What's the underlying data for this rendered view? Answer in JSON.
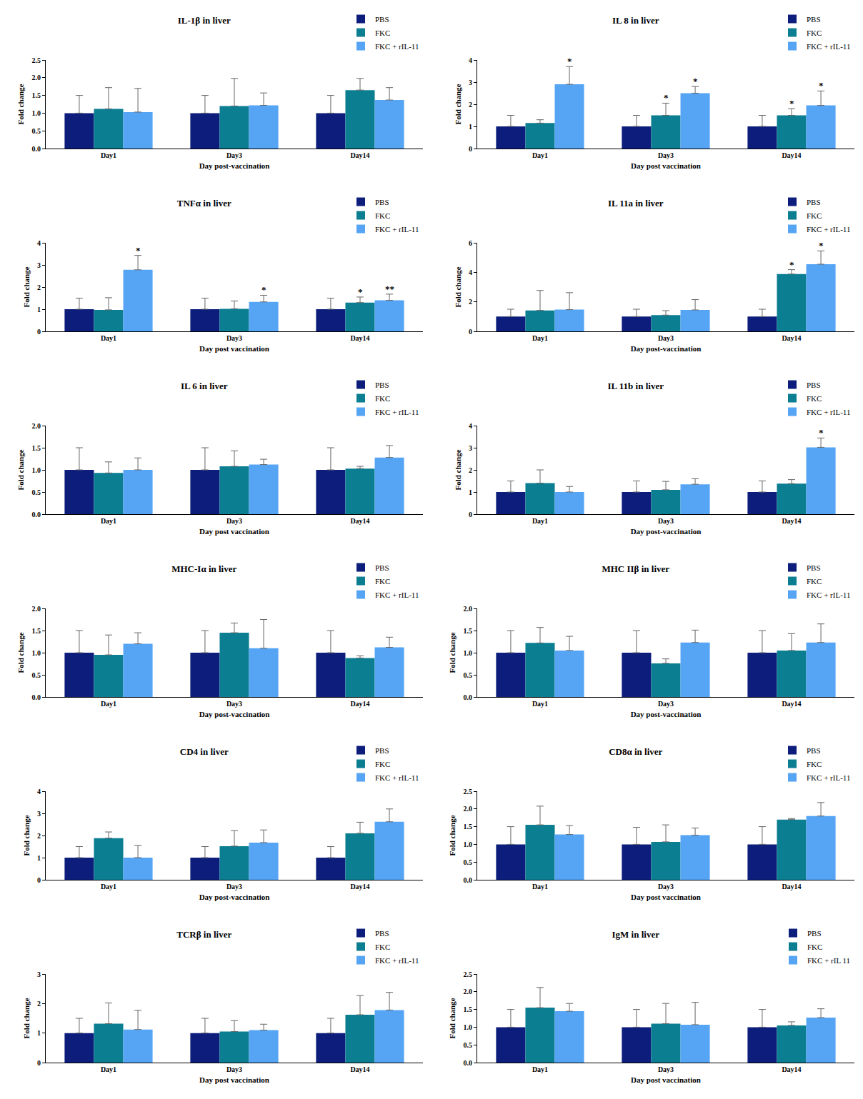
{
  "chart_data": [
    {
      "type": "bar",
      "title": "IL-1β in liver",
      "x_title": "Day post-vaccination",
      "y_title": "Fold change",
      "categories": [
        "Day1",
        "Day3",
        "Day14"
      ],
      "series": [
        {
          "name": "PBS",
          "color": "#0c1d7c",
          "values": [
            1.0,
            1.0,
            1.0
          ],
          "errors": [
            0.5,
            0.5,
            0.5
          ],
          "significance": [
            null,
            null,
            null
          ]
        },
        {
          "name": "FKC",
          "color": "#0b7e92",
          "values": [
            1.12,
            1.2,
            1.65
          ],
          "errors": [
            0.6,
            0.78,
            0.33
          ],
          "significance": [
            null,
            null,
            null
          ]
        },
        {
          "name": "FKC + rIL-11",
          "color": "#56a5f5",
          "values": [
            1.03,
            1.22,
            1.37
          ],
          "errors": [
            0.67,
            0.35,
            0.35
          ],
          "significance": [
            null,
            null,
            null
          ]
        }
      ],
      "ylim": [
        0,
        2.5
      ],
      "yticks": [
        {
          "value": 0,
          "label": "0.0"
        },
        0.5,
        {
          "value": 1,
          "label": "1.0"
        },
        1.5,
        {
          "value": 2,
          "label": "2.0"
        },
        2.5
      ],
      "legend": "top right",
      "grid": false
    },
    {
      "type": "bar",
      "title": "IL 8 in liver",
      "x_title": "Day post vaccination",
      "y_title": "Fold change",
      "categories": [
        "Day1",
        "Day3",
        "Day14"
      ],
      "series": [
        {
          "name": "PBS",
          "color": "#0c1d7c",
          "values": [
            1.0,
            1.0,
            1.0
          ],
          "errors": [
            0.5,
            0.5,
            0.5
          ],
          "significance": [
            null,
            null,
            null
          ]
        },
        {
          "name": "FKC",
          "color": "#0b7e92",
          "values": [
            1.15,
            1.5,
            1.5
          ],
          "errors": [
            0.15,
            0.55,
            0.3
          ],
          "significance": [
            null,
            "*",
            "*"
          ]
        },
        {
          "name": "FKC + rIL-11",
          "color": "#56a5f5",
          "values": [
            2.9,
            2.5,
            1.95
          ],
          "errors": [
            0.8,
            0.3,
            0.65
          ],
          "significance": [
            "*",
            "*",
            "*"
          ]
        }
      ],
      "ylim": [
        0,
        4
      ],
      "yticks": [
        0,
        1,
        2,
        3,
        4
      ],
      "legend": "top right",
      "grid": false
    },
    {
      "type": "bar",
      "title": "TNFα in liver",
      "x_title": "Day post vaccination",
      "y_title": "Fold change",
      "categories": [
        "Day1",
        "Day3",
        "Day14"
      ],
      "series": [
        {
          "name": "PBS",
          "color": "#0c1d7c",
          "values": [
            1.0,
            1.0,
            1.0
          ],
          "errors": [
            0.5,
            0.5,
            0.5
          ],
          "significance": [
            null,
            null,
            null
          ]
        },
        {
          "name": "FKC",
          "color": "#0b7e92",
          "values": [
            0.97,
            1.02,
            1.3
          ],
          "errors": [
            0.55,
            0.35,
            0.25
          ],
          "significance": [
            null,
            null,
            "*"
          ]
        },
        {
          "name": "FKC + rIL-11",
          "color": "#56a5f5",
          "values": [
            2.78,
            1.33,
            1.4
          ],
          "errors": [
            0.65,
            0.3,
            0.28
          ],
          "significance": [
            "*",
            "*",
            "**"
          ]
        }
      ],
      "ylim": [
        0,
        4
      ],
      "yticks": [
        0,
        1,
        2,
        3,
        4
      ],
      "legend": "top right",
      "grid": false
    },
    {
      "type": "bar",
      "title": "IL 11a in liver",
      "x_title": "Day post-vaccination",
      "y_title": "Fold change",
      "categories": [
        "Day1",
        "Day3",
        "Day14"
      ],
      "series": [
        {
          "name": "PBS",
          "color": "#0c1d7c",
          "values": [
            1.0,
            1.0,
            1.0
          ],
          "errors": [
            0.5,
            0.5,
            0.5
          ],
          "significance": [
            null,
            null,
            null
          ]
        },
        {
          "name": "FKC",
          "color": "#0b7e92",
          "values": [
            1.42,
            1.1,
            3.88
          ],
          "errors": [
            1.35,
            0.3,
            0.3
          ],
          "significance": [
            null,
            null,
            "*"
          ]
        },
        {
          "name": "FKC + rIL-11",
          "color": "#56a5f5",
          "values": [
            1.47,
            1.45,
            4.55
          ],
          "errors": [
            1.15,
            0.7,
            0.9
          ],
          "significance": [
            null,
            null,
            "*"
          ]
        }
      ],
      "ylim": [
        0,
        6
      ],
      "yticks": [
        0,
        2,
        4,
        6
      ],
      "legend": "top right",
      "grid": false
    },
    {
      "type": "bar",
      "title": "IL 6 in liver",
      "x_title": "Day post vaccination",
      "y_title": "Fold change",
      "categories": [
        "Day1",
        "Day3",
        "Day14"
      ],
      "series": [
        {
          "name": "PBS",
          "color": "#0c1d7c",
          "values": [
            1.0,
            1.0,
            1.0
          ],
          "errors": [
            0.5,
            0.5,
            0.5
          ],
          "significance": [
            null,
            null,
            null
          ]
        },
        {
          "name": "FKC",
          "color": "#0b7e92",
          "values": [
            0.93,
            1.08,
            1.03
          ],
          "errors": [
            0.25,
            0.35,
            0.05
          ],
          "significance": [
            null,
            null,
            null
          ]
        },
        {
          "name": "FKC + rIL-11",
          "color": "#56a5f5",
          "values": [
            1.0,
            1.12,
            1.28
          ],
          "errors": [
            0.27,
            0.12,
            0.27
          ],
          "significance": [
            null,
            null,
            null
          ]
        }
      ],
      "ylim": [
        0,
        2
      ],
      "yticks": [
        {
          "value": 0,
          "label": "0.0"
        },
        0.5,
        {
          "value": 1,
          "label": "1.0"
        },
        1.5,
        {
          "value": 2,
          "label": "2.0"
        }
      ],
      "legend": "top right",
      "grid": false
    },
    {
      "type": "bar",
      "title": "IL 11b in liver",
      "x_title": "Day post-vaccination",
      "y_title": "Fold change",
      "categories": [
        "Day1",
        "Day3",
        "Day14"
      ],
      "series": [
        {
          "name": "PBS",
          "color": "#0c1d7c",
          "values": [
            1.0,
            1.0,
            1.0
          ],
          "errors": [
            0.5,
            0.5,
            0.5
          ],
          "significance": [
            null,
            null,
            null
          ]
        },
        {
          "name": "FKC",
          "color": "#0b7e92",
          "values": [
            1.4,
            1.1,
            1.38
          ],
          "errors": [
            0.6,
            0.38,
            0.18
          ],
          "significance": [
            null,
            null,
            null
          ]
        },
        {
          "name": "FKC + rIL-11",
          "color": "#56a5f5",
          "values": [
            1.0,
            1.35,
            3.02
          ],
          "errors": [
            0.25,
            0.25,
            0.42
          ],
          "significance": [
            null,
            null,
            "*"
          ]
        }
      ],
      "ylim": [
        0,
        4
      ],
      "yticks": [
        0,
        1,
        2,
        3,
        4
      ],
      "legend": "top right",
      "grid": false
    },
    {
      "type": "bar",
      "title": "MHC-Iα in liver",
      "x_title": "Day post-vaccination",
      "y_title": "Fold change",
      "categories": [
        "Day1",
        "Day3",
        "Day14"
      ],
      "series": [
        {
          "name": "PBS",
          "color": "#0c1d7c",
          "values": [
            1.0,
            1.0,
            1.0
          ],
          "errors": [
            0.5,
            0.5,
            0.5
          ],
          "significance": [
            null,
            null,
            null
          ]
        },
        {
          "name": "FKC",
          "color": "#0b7e92",
          "values": [
            0.95,
            1.45,
            0.88
          ],
          "errors": [
            0.45,
            0.22,
            0.05
          ],
          "significance": [
            null,
            null,
            null
          ]
        },
        {
          "name": "FKC + rIL-11",
          "color": "#56a5f5",
          "values": [
            1.2,
            1.1,
            1.12
          ],
          "errors": [
            0.25,
            0.65,
            0.23
          ],
          "significance": [
            null,
            null,
            null
          ]
        }
      ],
      "ylim": [
        0,
        2
      ],
      "yticks": [
        {
          "value": 0,
          "label": "0.0"
        },
        0.5,
        {
          "value": 1,
          "label": "1.0"
        },
        1.5,
        {
          "value": 2,
          "label": "2.0"
        }
      ],
      "legend": "top right",
      "grid": false
    },
    {
      "type": "bar",
      "title": "MHC IIβ in liver",
      "x_title": "Day post-vaccination",
      "y_title": "Fold change",
      "categories": [
        "Day1",
        "Day3",
        "Day14"
      ],
      "series": [
        {
          "name": "PBS",
          "color": "#0c1d7c",
          "values": [
            1.0,
            1.0,
            1.0
          ],
          "errors": [
            0.5,
            0.5,
            0.5
          ],
          "significance": [
            null,
            null,
            null
          ]
        },
        {
          "name": "FKC",
          "color": "#0b7e92",
          "values": [
            1.22,
            0.76,
            1.05
          ],
          "errors": [
            0.35,
            0.1,
            0.38
          ],
          "significance": [
            null,
            null,
            null
          ]
        },
        {
          "name": "FKC + rIL-11",
          "color": "#56a5f5",
          "values": [
            1.05,
            1.23,
            1.23
          ],
          "errors": [
            0.32,
            0.28,
            0.42
          ],
          "significance": [
            null,
            null,
            null
          ]
        }
      ],
      "ylim": [
        0,
        2
      ],
      "yticks": [
        {
          "value": 0,
          "label": "0.0"
        },
        0.5,
        {
          "value": 1,
          "label": "1.0"
        },
        1.5,
        {
          "value": 2,
          "label": "2.0"
        }
      ],
      "legend": "top right",
      "grid": false
    },
    {
      "type": "bar",
      "title": "CD4 in liver",
      "x_title": "Day post-vaccination",
      "y_title": "Fold change",
      "categories": [
        "Day1",
        "Day3",
        "Day14"
      ],
      "series": [
        {
          "name": "PBS",
          "color": "#0c1d7c",
          "values": [
            1.0,
            1.0,
            1.0
          ],
          "errors": [
            0.5,
            0.5,
            0.5
          ],
          "significance": [
            null,
            null,
            null
          ]
        },
        {
          "name": "FKC",
          "color": "#0b7e92",
          "values": [
            1.88,
            1.52,
            2.1
          ],
          "errors": [
            0.28,
            0.7,
            0.5
          ],
          "significance": [
            null,
            null,
            null
          ]
        },
        {
          "name": "FKC + rIL-11",
          "color": "#56a5f5",
          "values": [
            1.0,
            1.68,
            2.62
          ],
          "errors": [
            0.55,
            0.57,
            0.58
          ],
          "significance": [
            null,
            null,
            null
          ]
        }
      ],
      "ylim": [
        0,
        4
      ],
      "yticks": [
        0,
        1,
        2,
        3,
        4
      ],
      "legend": "top right",
      "grid": false
    },
    {
      "type": "bar",
      "title": "CD8α in liver",
      "x_title": "Day post vaccination",
      "y_title": "Fold change",
      "categories": [
        "Day1",
        "Day3",
        "Day14"
      ],
      "series": [
        {
          "name": "PBS",
          "color": "#0c1d7c",
          "values": [
            1.0,
            1.0,
            1.0
          ],
          "errors": [
            0.5,
            0.48,
            0.5
          ],
          "significance": [
            null,
            null,
            null
          ]
        },
        {
          "name": "FKC",
          "color": "#0b7e92",
          "values": [
            1.55,
            1.07,
            1.7
          ],
          "errors": [
            0.53,
            0.48,
            0.03
          ],
          "significance": [
            null,
            null,
            null
          ]
        },
        {
          "name": "FKC + rIL-11",
          "color": "#56a5f5",
          "values": [
            1.28,
            1.26,
            1.8
          ],
          "errors": [
            0.25,
            0.2,
            0.38
          ],
          "significance": [
            null,
            null,
            null
          ]
        }
      ],
      "ylim": [
        0,
        2.5
      ],
      "yticks": [
        {
          "value": 0,
          "label": "0.0"
        },
        0.5,
        {
          "value": 1,
          "label": "1.0"
        },
        1.5,
        {
          "value": 2,
          "label": "2.0"
        },
        2.5
      ],
      "legend": "top right",
      "grid": false
    },
    {
      "type": "bar",
      "title": "TCRβ in liver",
      "x_title": "Day post vaccination",
      "y_title": "Fold change",
      "categories": [
        "Day1",
        "Day3",
        "Day14"
      ],
      "series": [
        {
          "name": "PBS",
          "color": "#0c1d7c",
          "values": [
            1.0,
            1.0,
            1.0
          ],
          "errors": [
            0.5,
            0.5,
            0.5
          ],
          "significance": [
            null,
            null,
            null
          ]
        },
        {
          "name": "FKC",
          "color": "#0b7e92",
          "values": [
            1.32,
            1.05,
            1.62
          ],
          "errors": [
            0.7,
            0.37,
            0.65
          ],
          "significance": [
            null,
            null,
            null
          ]
        },
        {
          "name": "FKC + rIL-11",
          "color": "#56a5f5",
          "values": [
            1.12,
            1.1,
            1.78
          ],
          "errors": [
            0.65,
            0.2,
            0.6
          ],
          "significance": [
            null,
            null,
            null
          ]
        }
      ],
      "ylim": [
        0,
        3
      ],
      "yticks": [
        0,
        1,
        2,
        3
      ],
      "legend": "top right",
      "grid": false
    },
    {
      "type": "bar",
      "title": "IgM in liver",
      "x_title": "Day post vaccination",
      "y_title": "Fold change",
      "categories": [
        "Day1",
        "Day3",
        "Day14"
      ],
      "series": [
        {
          "name": "PBS",
          "color": "#0c1d7c",
          "values": [
            1.0,
            1.0,
            1.0
          ],
          "errors": [
            0.5,
            0.5,
            0.5
          ],
          "significance": [
            null,
            null,
            null
          ]
        },
        {
          "name": "FKC",
          "color": "#0b7e92",
          "values": [
            1.55,
            1.1,
            1.05
          ],
          "errors": [
            0.57,
            0.57,
            0.1
          ],
          "significance": [
            null,
            null,
            null
          ]
        },
        {
          "name": "FKC + rIL 11",
          "color": "#56a5f5",
          "values": [
            1.45,
            1.07,
            1.27
          ],
          "errors": [
            0.22,
            0.63,
            0.25
          ],
          "significance": [
            null,
            null,
            null
          ]
        }
      ],
      "ylim": [
        0,
        2.5
      ],
      "yticks": [
        {
          "value": 0,
          "label": "0.0"
        },
        0.5,
        {
          "value": 1,
          "label": "1.0"
        },
        1.5,
        {
          "value": 2,
          "label": "2.0"
        },
        2.5
      ],
      "legend": "top right",
      "grid": false
    }
  ]
}
